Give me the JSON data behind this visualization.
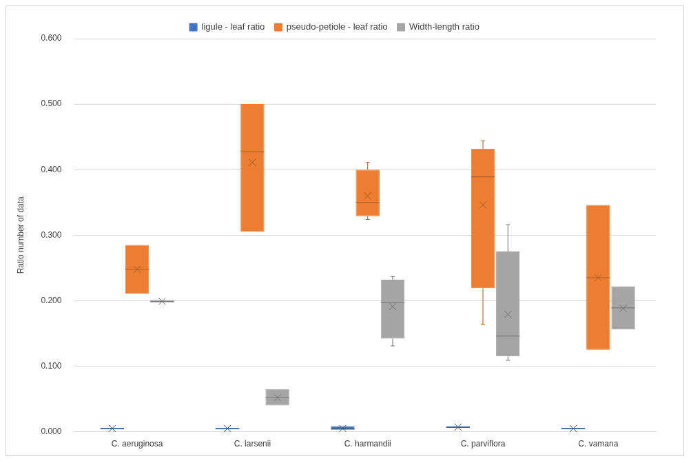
{
  "chart_data": {
    "type": "box",
    "ylabel": "Ratio number of data",
    "categories": [
      "C. aeruginosa",
      "C. larsenii",
      "C. harmandii",
      "C. parviflora",
      "C. vamana"
    ],
    "ylim": [
      0,
      0.6
    ],
    "yticks": [
      {
        "value": 0,
        "label": "0.000"
      },
      {
        "value": 0.1,
        "label": "0.100"
      },
      {
        "value": 0.2,
        "label": "0.200"
      },
      {
        "value": 0.3,
        "label": "0.300"
      },
      {
        "value": 0.4,
        "label": "0.400"
      },
      {
        "value": 0.5,
        "label": "0.500"
      },
      {
        "value": 0.6,
        "label": "0.600"
      }
    ],
    "grid": "y",
    "legend": "top",
    "series": [
      {
        "name": "ligule - leaf ratio",
        "color": "#4472c4",
        "boxes": [
          {
            "low": 0.004,
            "q1": 0.004,
            "median": 0.005,
            "q3": 0.006,
            "high": 0.006,
            "mean": 0.005
          },
          {
            "low": 0.004,
            "q1": 0.004,
            "median": 0.005,
            "q3": 0.006,
            "high": 0.006,
            "mean": 0.005
          },
          {
            "low": 0.003,
            "q1": 0.003,
            "median": 0.005,
            "q3": 0.008,
            "high": 0.008,
            "mean": 0.005
          },
          {
            "low": 0.006,
            "q1": 0.006,
            "median": 0.007,
            "q3": 0.008,
            "high": 0.008,
            "mean": 0.007
          },
          {
            "low": 0.004,
            "q1": 0.004,
            "median": 0.005,
            "q3": 0.006,
            "high": 0.006,
            "mean": 0.005
          }
        ]
      },
      {
        "name": "pseudo-petiole - leaf ratio",
        "color": "#ed7d31",
        "boxes": [
          {
            "low": 0.211,
            "q1": 0.211,
            "median": 0.248,
            "q3": 0.285,
            "high": 0.285,
            "mean": 0.248
          },
          {
            "low": 0.305,
            "q1": 0.305,
            "median": 0.427,
            "q3": 0.5,
            "high": 0.5,
            "mean": 0.411
          },
          {
            "low": 0.324,
            "q1": 0.329,
            "median": 0.35,
            "q3": 0.4,
            "high": 0.411,
            "mean": 0.36
          },
          {
            "low": 0.164,
            "q1": 0.219,
            "median": 0.389,
            "q3": 0.432,
            "high": 0.444,
            "mean": 0.346
          },
          {
            "low": 0.125,
            "q1": 0.125,
            "median": 0.235,
            "q3": 0.346,
            "high": 0.346,
            "mean": 0.235
          }
        ]
      },
      {
        "name": "Width-length ratio",
        "color": "#a5a5a5",
        "boxes": [
          {
            "low": 0.197,
            "q1": 0.197,
            "median": 0.199,
            "q3": 0.201,
            "high": 0.201,
            "mean": 0.199
          },
          {
            "low": 0.04,
            "q1": 0.04,
            "median": 0.052,
            "q3": 0.065,
            "high": 0.065,
            "mean": 0.052
          },
          {
            "low": 0.131,
            "q1": 0.142,
            "median": 0.197,
            "q3": 0.232,
            "high": 0.237,
            "mean": 0.191
          },
          {
            "low": 0.109,
            "q1": 0.115,
            "median": 0.146,
            "q3": 0.275,
            "high": 0.316,
            "mean": 0.179
          },
          {
            "low": 0.156,
            "q1": 0.156,
            "median": 0.189,
            "q3": 0.222,
            "high": 0.222,
            "mean": 0.188
          }
        ]
      }
    ]
  }
}
